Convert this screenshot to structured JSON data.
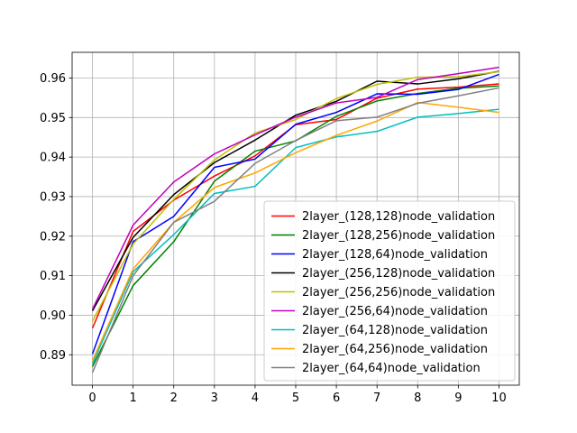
{
  "chart_data": {
    "type": "line",
    "title": "",
    "xlabel": "",
    "ylabel": "",
    "xlim": [
      -0.5,
      10.5
    ],
    "ylim": [
      0.8823,
      0.9665
    ],
    "x_ticks": [
      "0",
      "1",
      "2",
      "3",
      "4",
      "5",
      "6",
      "7",
      "8",
      "9",
      "10"
    ],
    "y_ticks": [
      "0.89",
      "0.90",
      "0.91",
      "0.92",
      "0.93",
      "0.94",
      "0.95",
      "0.96"
    ],
    "grid": true,
    "legend_position": "lower right",
    "x": [
      0,
      1,
      2,
      3,
      4,
      5,
      6,
      7,
      8,
      9,
      10
    ],
    "series": [
      {
        "name": "2layer_(128,128)node_validation",
        "color": "#ff0000",
        "values": [
          0.8967,
          0.9212,
          0.9291,
          0.9352,
          0.9403,
          0.9482,
          0.9495,
          0.9549,
          0.9572,
          0.9577,
          0.9585
        ]
      },
      {
        "name": "2layer_(128,256)node_validation",
        "color": "#008000",
        "values": [
          0.887,
          0.9075,
          0.9186,
          0.9339,
          0.9415,
          0.9441,
          0.9503,
          0.9542,
          0.9561,
          0.9574,
          0.958
        ]
      },
      {
        "name": "2layer_(128,64)node_validation",
        "color": "#0000ff",
        "values": [
          0.8902,
          0.9186,
          0.925,
          0.9374,
          0.9395,
          0.9483,
          0.9513,
          0.956,
          0.9559,
          0.9571,
          0.9609
        ]
      },
      {
        "name": "2layer_(256,128)node_validation",
        "color": "#000000",
        "values": [
          0.9011,
          0.9197,
          0.9305,
          0.9386,
          0.9443,
          0.9506,
          0.9541,
          0.9592,
          0.9585,
          0.9598,
          0.9617
        ]
      },
      {
        "name": "2layer_(256,256)node_validation",
        "color": "#bfbf00",
        "values": [
          0.8985,
          0.918,
          0.9293,
          0.9393,
          0.9461,
          0.9495,
          0.9548,
          0.9584,
          0.9602,
          0.9603,
          0.9616
        ]
      },
      {
        "name": "2layer_(256,64)node_validation",
        "color": "#bf00bf",
        "values": [
          0.9015,
          0.9228,
          0.9337,
          0.9408,
          0.9456,
          0.9501,
          0.9537,
          0.9551,
          0.9596,
          0.9611,
          0.9627
        ]
      },
      {
        "name": "2layer_(64,128)node_validation",
        "color": "#00bfbf",
        "values": [
          0.8877,
          0.911,
          0.9204,
          0.9308,
          0.9326,
          0.9424,
          0.9451,
          0.9465,
          0.9501,
          0.951,
          0.9521
        ]
      },
      {
        "name": "2layer_(64,256)node_validation",
        "color": "#ffa500",
        "values": [
          0.8885,
          0.9117,
          0.9235,
          0.9323,
          0.936,
          0.9411,
          0.9455,
          0.9491,
          0.9538,
          0.9526,
          0.9513
        ]
      },
      {
        "name": "2layer_(64,64)node_validation",
        "color": "#808080",
        "values": [
          0.8855,
          0.91,
          0.9235,
          0.9288,
          0.9384,
          0.9442,
          0.9492,
          0.9501,
          0.9536,
          0.9555,
          0.9575
        ]
      }
    ]
  }
}
